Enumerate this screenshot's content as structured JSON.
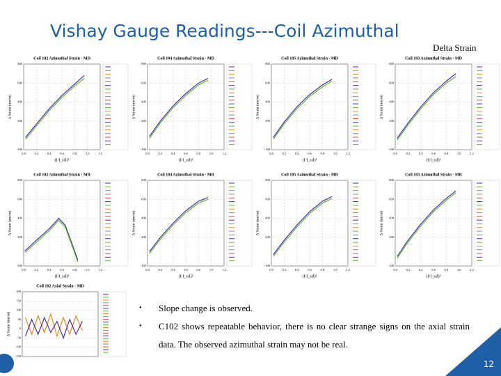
{
  "header": {
    "title": "Vishay Gauge Readings---Coil Azimuthal",
    "subtitle": "Delta Strain"
  },
  "chart_data": [
    {
      "type": "line",
      "title": "Coil 102 Azimuthal Strain - MD",
      "xlabel": "(I/I_ssl)²",
      "ylabel": "Δ Strain (um/m)",
      "xlim": [
        0,
        1.2
      ],
      "xticks": [
        {
          "value": 0,
          "label": "0.0"
        },
        0.2,
        0.4,
        0.6,
        0.8,
        {
          "value": 1,
          "label": "1.0"
        },
        1.2
      ],
      "ylim": [
        -100,
        800
      ],
      "yticks": [
        -100,
        200,
        400,
        600,
        800
      ],
      "grid": true,
      "x": [
        0.03,
        0.2,
        0.4,
        0.6,
        0.8,
        0.95
      ],
      "series": [
        {
          "color": "#4b2aa8",
          "values": [
            30,
            170,
            330,
            470,
            590,
            680
          ]
        },
        {
          "color": "#5cb82e",
          "values": [
            10,
            150,
            310,
            450,
            570,
            650
          ]
        }
      ]
    },
    {
      "type": "line",
      "title": "Coil 104 Azimuthal Strain - MD",
      "xlabel": "(I/I_ssl)²",
      "ylabel": "Δ Strain (um/m)",
      "xlim": [
        0,
        1.2
      ],
      "xticks": [
        {
          "value": 0,
          "label": "0.0"
        },
        0.2,
        0.4,
        0.6,
        0.8,
        {
          "value": 1,
          "label": "1.0"
        },
        1.2
      ],
      "ylim": [
        -100,
        800
      ],
      "yticks": [
        -100,
        200,
        400,
        600,
        800
      ],
      "grid": true,
      "x": [
        0.03,
        0.2,
        0.4,
        0.6,
        0.8,
        0.95
      ],
      "series": [
        {
          "color": "#4b2aa8",
          "values": [
            40,
            200,
            360,
            490,
            600,
            650
          ]
        },
        {
          "color": "#5cb82e",
          "values": [
            20,
            180,
            340,
            470,
            580,
            630
          ]
        }
      ]
    },
    {
      "type": "line",
      "title": "Coil 105 Azimuthal Strain - MD",
      "xlabel": "(I/I_ssl)²",
      "ylabel": "Δ Strain (um/m)",
      "xlim": [
        0,
        1.2
      ],
      "xticks": [
        {
          "value": 0,
          "label": "0.0"
        },
        0.2,
        0.4,
        0.6,
        0.8,
        {
          "value": 1,
          "label": "1.0"
        },
        1.2
      ],
      "ylim": [
        -100,
        800
      ],
      "yticks": [
        -100,
        200,
        400,
        600,
        800
      ],
      "grid": true,
      "x": [
        0.03,
        0.2,
        0.4,
        0.6,
        0.8,
        0.95
      ],
      "series": [
        {
          "color": "#4b2aa8",
          "values": [
            30,
            190,
            350,
            480,
            580,
            640
          ]
        },
        {
          "color": "#5cb82e",
          "values": [
            10,
            170,
            330,
            460,
            560,
            620
          ]
        }
      ]
    },
    {
      "type": "line",
      "title": "Coil 103 Azimuthal Strain - MD",
      "xlabel": "(I/I_ssl)²",
      "ylabel": "Δ Strain (um/m)",
      "xlim": [
        0,
        1.2
      ],
      "xticks": [
        {
          "value": 0,
          "label": "0.0"
        },
        0.2,
        0.4,
        0.6,
        0.8,
        {
          "value": 1,
          "label": "1.0"
        },
        1.2
      ],
      "ylim": [
        -100,
        800
      ],
      "yticks": [
        -100,
        200,
        400,
        600,
        800
      ],
      "grid": true,
      "x": [
        0.03,
        0.2,
        0.4,
        0.6,
        0.8,
        0.95
      ],
      "series": [
        {
          "color": "#4b2aa8",
          "values": [
            20,
            180,
            350,
            500,
            620,
            700
          ]
        },
        {
          "color": "#5cb82e",
          "values": [
            0,
            160,
            330,
            480,
            600,
            670
          ]
        }
      ]
    },
    {
      "type": "line",
      "title": "Coil 102 Azimuthal Strain - MR",
      "xlabel": "(I/I_ssl)²",
      "ylabel": "Δ Strain (um/m)",
      "xlim": [
        0,
        1.2
      ],
      "xticks": [
        {
          "value": 0,
          "label": "0.0"
        },
        0.2,
        0.4,
        0.6,
        0.8,
        {
          "value": 1,
          "label": "1.0"
        },
        1.2
      ],
      "ylim": [
        -100,
        800
      ],
      "yticks": [
        -100,
        200,
        400,
        600,
        800
      ],
      "grid": true,
      "x": [
        0.02,
        0.2,
        0.4,
        0.55,
        0.65,
        0.75,
        0.85
      ],
      "series": [
        {
          "color": "#4b2aa8",
          "values": [
            60,
            170,
            290,
            400,
            330,
            150,
            -40
          ]
        },
        {
          "color": "#5cb82e",
          "values": [
            40,
            150,
            270,
            380,
            310,
            130,
            -60
          ]
        }
      ]
    },
    {
      "type": "line",
      "title": "Coil 104 Azimuthal Strain - MR",
      "xlabel": "(I/I_ssl)²",
      "ylabel": "Δ Strain (um/m)",
      "xlim": [
        0,
        1.2
      ],
      "xticks": [
        {
          "value": 0,
          "label": "0.0"
        },
        0.2,
        0.4,
        0.6,
        0.8,
        {
          "value": 1,
          "label": "1.0"
        },
        1.2
      ],
      "ylim": [
        -100,
        800
      ],
      "yticks": [
        -100,
        200,
        400,
        600,
        800
      ],
      "grid": true,
      "x": [
        0.03,
        0.2,
        0.4,
        0.6,
        0.8,
        0.95
      ],
      "series": [
        {
          "color": "#4b2aa8",
          "values": [
            50,
            200,
            350,
            480,
            580,
            620
          ]
        },
        {
          "color": "#5cb82e",
          "values": [
            30,
            180,
            330,
            460,
            560,
            600
          ]
        }
      ]
    },
    {
      "type": "line",
      "title": "Coil 105 Azimuthal Strain - MR",
      "xlabel": "(I/I_ssl)²",
      "ylabel": "Δ Strain (um/m)",
      "xlim": [
        0,
        1.2
      ],
      "xticks": [
        {
          "value": 0,
          "label": "0.0"
        },
        0.2,
        0.4,
        0.6,
        0.8,
        {
          "value": 1,
          "label": "1.0"
        },
        1.2
      ],
      "ylim": [
        -100,
        800
      ],
      "yticks": [
        -100,
        200,
        400,
        600,
        800
      ],
      "grid": true,
      "x": [
        0.03,
        0.2,
        0.4,
        0.6,
        0.8,
        0.95
      ],
      "series": [
        {
          "color": "#4b2aa8",
          "values": [
            20,
            170,
            330,
            470,
            580,
            630
          ]
        },
        {
          "color": "#5cb82e",
          "values": [
            0,
            150,
            310,
            450,
            560,
            610
          ]
        }
      ]
    },
    {
      "type": "line",
      "title": "Coil 103 Azimuthal Strain - MR",
      "xlabel": "(I/I_ssl)²",
      "ylabel": "Δ Strain (um/m)",
      "xlim": [
        0,
        1.2
      ],
      "xticks": [
        {
          "value": 0,
          "label": "0.0"
        },
        0.2,
        0.4,
        0.6,
        0.8,
        {
          "value": 1,
          "label": "1.0"
        },
        1.2
      ],
      "ylim": [
        -100,
        800
      ],
      "yticks": [
        -100,
        200,
        400,
        600,
        800
      ],
      "grid": true,
      "x": [
        0.03,
        0.2,
        0.4,
        0.6,
        0.8,
        0.95
      ],
      "series": [
        {
          "color": "#4b2aa8",
          "values": [
            0,
            170,
            340,
            490,
            610,
            690
          ]
        },
        {
          "color": "#5cb82e",
          "values": [
            -20,
            150,
            320,
            470,
            590,
            670
          ]
        }
      ]
    },
    {
      "type": "line",
      "title": "Coil 102 Axial Strain - MD",
      "ylabel": "Δ Strain (um/m)",
      "xlim": [
        0,
        1.2
      ],
      "ylim": [
        -150,
        200
      ],
      "yticks": [
        -150,
        -100,
        -50,
        0,
        50,
        100,
        150,
        200
      ],
      "grid": true,
      "x": [
        0.05,
        0.15,
        0.25,
        0.35,
        0.45,
        0.55,
        0.65,
        0.75,
        0.85,
        0.95
      ],
      "series": [
        {
          "color": "#e08a1e",
          "values": [
            60,
            -30,
            70,
            -20,
            80,
            -40,
            60,
            -30,
            70,
            -10
          ]
        },
        {
          "color": "#4b2aa8",
          "values": [
            -40,
            50,
            -30,
            60,
            -20,
            40,
            -50,
            50,
            -30,
            40
          ]
        }
      ]
    }
  ],
  "bullets": [
    "Slope change is observed.",
    "C102 shows repeatable behavior, there is no clear strange signs on the axial strain data. The observed azimuthal strain may not be real."
  ],
  "page_number": "12"
}
